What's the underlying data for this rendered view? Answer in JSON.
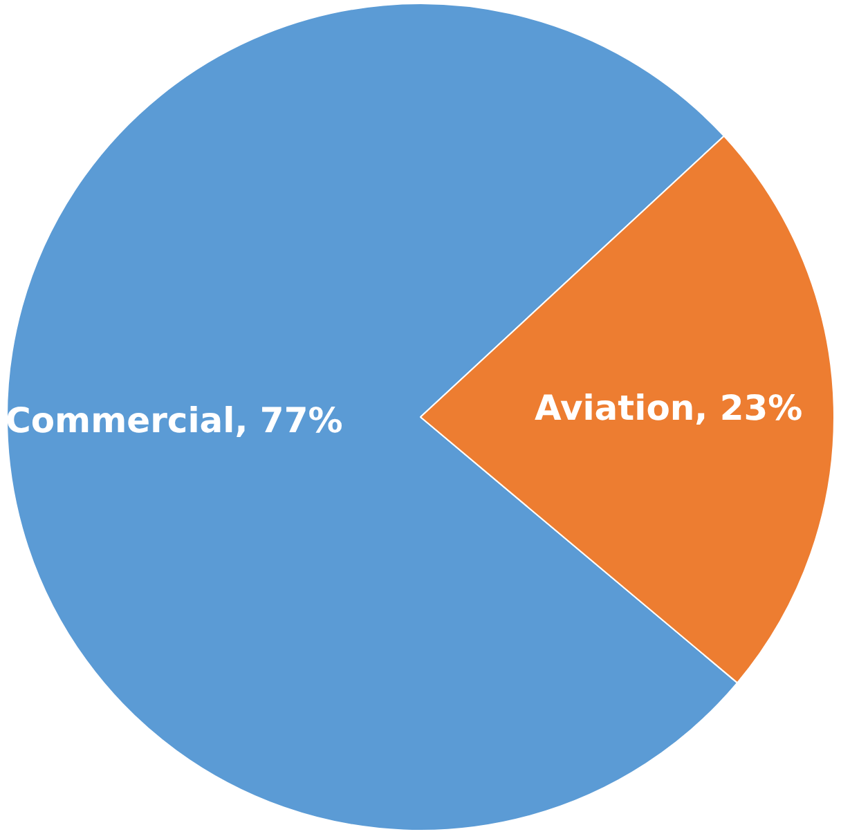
{
  "chart_data": {
    "type": "pie",
    "categories": [
      "Commercial",
      "Aviation"
    ],
    "values": [
      77,
      23
    ],
    "colors": [
      "#5b9bd5",
      "#ed7d31"
    ],
    "value_labels": [
      "77%",
      "23%"
    ],
    "legend": false
  }
}
